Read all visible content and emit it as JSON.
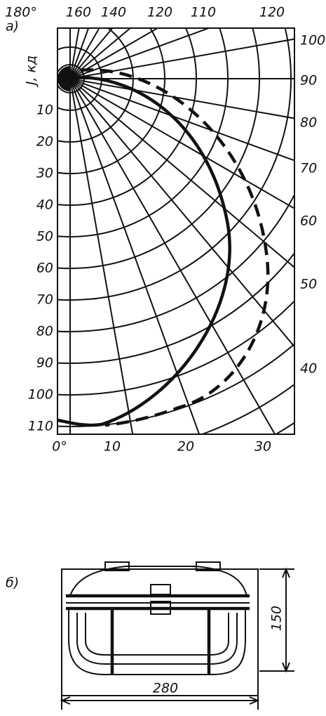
{
  "figure_a": {
    "label": "а)",
    "axis_label": "J, кд",
    "top_labels": [
      "180°",
      "160",
      "140",
      "120",
      "110",
      "120"
    ],
    "right_labels": [
      "100",
      "90",
      "80",
      "70",
      "60",
      "50",
      "40"
    ],
    "left_labels": [
      "10",
      "20",
      "30",
      "40",
      "50",
      "60",
      "70",
      "80",
      "90",
      "100",
      "110"
    ],
    "bottom_labels": [
      "0°",
      "10",
      "20",
      "30"
    ]
  },
  "figure_b": {
    "label": "б)",
    "height_dim": "150",
    "width_dim": "280"
  }
}
